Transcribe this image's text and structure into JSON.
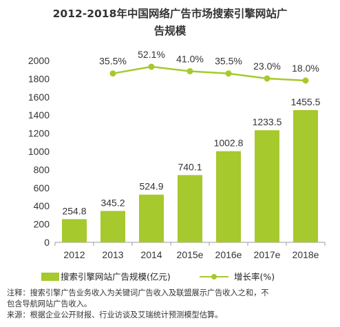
{
  "title": {
    "line1": "2012-2018年中国网络广告市场搜索引擎网站广",
    "line2": "告规模"
  },
  "legend": {
    "bar_label": "搜索引擎网站广告规模(亿元)",
    "line_label": "增长率(%)"
  },
  "colors": {
    "bar": "#a6c92d",
    "line": "#a6c92d",
    "axis": "#999999"
  },
  "notes": {
    "line1": "注释：搜索引擎广告业务收入为关键词广告收入及联盟展示广告收入之和，不",
    "line2": "包含导航网站广告收入。",
    "line3": "来源：根据企业公开财报、行业访谈及艾瑞统计预测模型估算。"
  },
  "chart_data": {
    "type": "bar",
    "categories": [
      "2012",
      "2013",
      "2014",
      "2015e",
      "2016e",
      "2017e",
      "2018e"
    ],
    "series": [
      {
        "name": "搜索引擎网站广告规模(亿元)",
        "type": "bar",
        "values": [
          254.8,
          345.2,
          524.9,
          740.1,
          1002.8,
          1233.5,
          1455.5
        ],
        "labels": [
          "254.8",
          "345.2",
          "524.9",
          "740.1",
          "1002.8",
          "1233.5",
          "1455.5"
        ]
      },
      {
        "name": "增长率(%)",
        "type": "line",
        "values": [
          null,
          35.5,
          52.1,
          41.0,
          35.5,
          23.0,
          18.0
        ],
        "labels": [
          "",
          "35.5%",
          "52.1%",
          "41.0%",
          "35.5%",
          "23.0%",
          "18.0%"
        ]
      }
    ],
    "y_ticks": [
      "0",
      "200",
      "400",
      "600",
      "800",
      "1000",
      "1200",
      "1400",
      "1600",
      "1800",
      "2000"
    ],
    "ylim": [
      0,
      2000
    ],
    "legend_position": "bottom",
    "grid": false
  }
}
